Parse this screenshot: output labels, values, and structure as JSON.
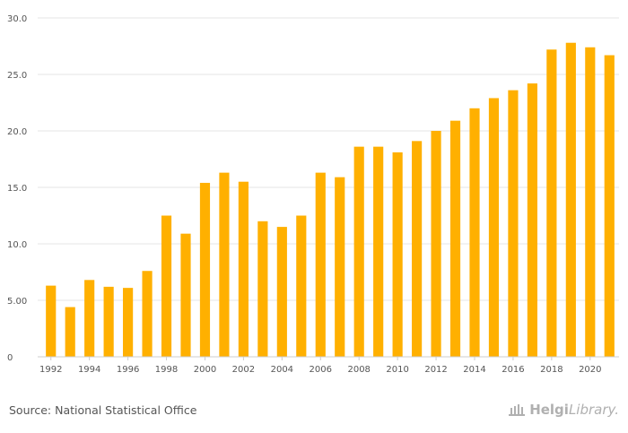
{
  "chart_data": {
    "type": "bar",
    "categories": [
      "1992",
      "1993",
      "1994",
      "1995",
      "1996",
      "1997",
      "1998",
      "1999",
      "2000",
      "2001",
      "2002",
      "2003",
      "2004",
      "2005",
      "2006",
      "2007",
      "2008",
      "2009",
      "2010",
      "2011",
      "2012",
      "2013",
      "2014",
      "2015",
      "2016",
      "2017",
      "2018",
      "2019",
      "2020",
      "2021"
    ],
    "values": [
      6.3,
      4.4,
      6.8,
      6.2,
      6.1,
      7.6,
      12.5,
      10.9,
      15.4,
      16.3,
      15.5,
      12.0,
      11.5,
      12.5,
      16.3,
      15.9,
      18.6,
      18.6,
      18.1,
      19.1,
      20.0,
      20.9,
      22.0,
      22.9,
      23.6,
      24.2,
      27.2,
      27.8,
      27.4,
      26.7
    ],
    "x_tick_labels": [
      "1992",
      "1994",
      "1996",
      "1998",
      "2000",
      "2002",
      "2004",
      "2006",
      "2008",
      "2010",
      "2012",
      "2014",
      "2016",
      "2018",
      "2020"
    ],
    "y_ticks": [
      0,
      5,
      10,
      15,
      20,
      25,
      30
    ],
    "y_tick_labels": [
      "0",
      "5.00",
      "10.0",
      "15.0",
      "20.0",
      "25.0",
      "30.0"
    ],
    "ylim": [
      0,
      30
    ],
    "title": "",
    "xlabel": "",
    "ylabel": "",
    "bar_color": "#ffb000",
    "grid": true
  },
  "footer": {
    "source": "Source: National Statistical Office",
    "logo_strong": "Helgi",
    "logo_light": "Library."
  }
}
